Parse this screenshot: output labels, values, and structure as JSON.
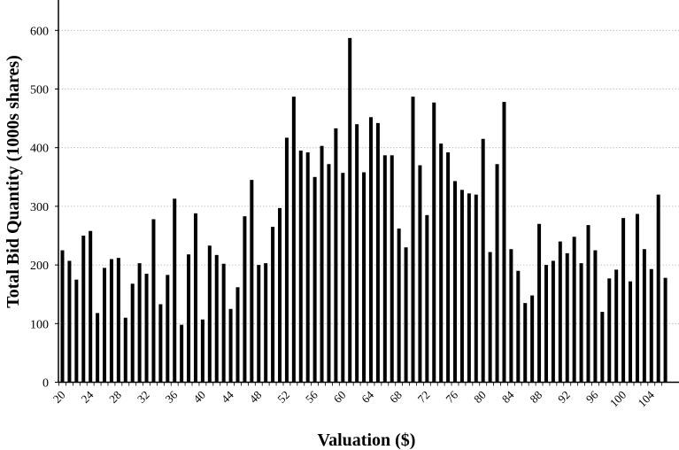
{
  "chart_data": {
    "type": "bar",
    "xlabel": "Valuation ($)",
    "ylabel": "Total Bid Quantity (1000s shares)",
    "ylim": [
      0,
      650
    ],
    "yticks": [
      0,
      100,
      200,
      300,
      400,
      500,
      600
    ],
    "xtick_labels": [
      "20",
      "24",
      "28",
      "32",
      "36",
      "40",
      "44",
      "48",
      "52",
      "56",
      "60",
      "64",
      "68",
      "72",
      "76",
      "80",
      "84",
      "88",
      "92",
      "96",
      "100",
      "104"
    ],
    "grid": "horizontal dotted",
    "legend": "none",
    "bar_color": "#000000",
    "x": [
      20,
      21,
      22,
      23,
      24,
      25,
      26,
      27,
      28,
      29,
      30,
      31,
      32,
      33,
      34,
      35,
      36,
      37,
      38,
      39,
      40,
      41,
      42,
      43,
      44,
      45,
      46,
      47,
      48,
      49,
      50,
      51,
      52,
      53,
      54,
      55,
      56,
      57,
      58,
      59,
      60,
      61,
      62,
      63,
      64,
      65,
      66,
      67,
      68,
      69,
      70,
      71,
      72,
      73,
      74,
      75,
      76,
      77,
      78,
      79,
      80,
      81,
      82,
      83,
      84,
      85,
      86,
      87,
      88,
      89,
      90,
      91,
      92,
      93,
      94,
      95,
      96,
      97,
      98,
      99,
      100,
      101,
      102,
      103,
      104,
      105,
      106
    ],
    "values": [
      225,
      207,
      175,
      250,
      258,
      118,
      195,
      210,
      212,
      110,
      168,
      203,
      185,
      278,
      133,
      183,
      313,
      98,
      218,
      288,
      107,
      233,
      217,
      202,
      125,
      162,
      283,
      345,
      200,
      203,
      265,
      297,
      417,
      487,
      395,
      392,
      350,
      403,
      372,
      433,
      357,
      587,
      440,
      358,
      452,
      442,
      387,
      387,
      262,
      230,
      487,
      370,
      285,
      477,
      407,
      392,
      343,
      328,
      322,
      320,
      415,
      222,
      372,
      478,
      227,
      190,
      135,
      148,
      270,
      200,
      207,
      240,
      220,
      248,
      203,
      268,
      225,
      120,
      177,
      192,
      280,
      172,
      287,
      227,
      193,
      320,
      178
    ]
  }
}
